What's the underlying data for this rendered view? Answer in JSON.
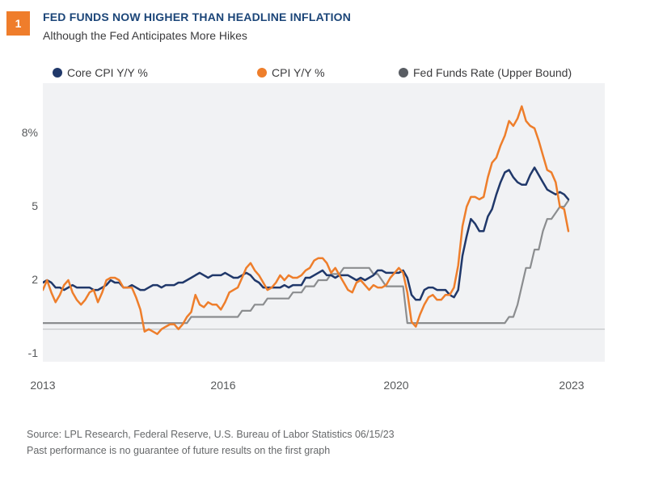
{
  "page": {
    "number_badge": "1"
  },
  "header": {
    "title": "FED FUNDS NOW HIGHER THAN HEADLINE INFLATION",
    "subtitle": "Although the Fed Anticipates More Hikes"
  },
  "legend": [
    {
      "label": "Core CPI Y/Y %",
      "color": "#20386A"
    },
    {
      "label": "CPI Y/Y %",
      "color": "#EE7E2B"
    },
    {
      "label": "Fed Funds Rate (Upper Bound)",
      "color": "#595D63"
    }
  ],
  "chart_data": {
    "type": "line",
    "title": "Fed Funds Now Higher Than Headline Inflation",
    "x_unit": "month",
    "x_start": "2013-01",
    "x_end": "2023-05",
    "x_tick_labels": [
      "2013",
      "2016",
      "2020",
      "2023"
    ],
    "y_tick_labels": [
      "8%",
      "5",
      "2",
      "-1"
    ],
    "y_tick_values": [
      8,
      5,
      2,
      -1
    ],
    "ylim": [
      -1,
      10
    ],
    "grid": "zero-line-only",
    "legend_position": "top",
    "plot_bg_color": "#F1F2F4",
    "zero_line_color": "#BFC1C3",
    "series": [
      {
        "name": "Fed Funds Rate (Upper Bound)",
        "color": "#8B8D8F",
        "stroke_width": 2.2,
        "values": [
          0.25,
          0.25,
          0.25,
          0.25,
          0.25,
          0.25,
          0.25,
          0.25,
          0.25,
          0.25,
          0.25,
          0.25,
          0.25,
          0.25,
          0.25,
          0.25,
          0.25,
          0.25,
          0.25,
          0.25,
          0.25,
          0.25,
          0.25,
          0.25,
          0.25,
          0.25,
          0.25,
          0.25,
          0.25,
          0.25,
          0.25,
          0.25,
          0.25,
          0.25,
          0.25,
          0.5,
          0.5,
          0.5,
          0.5,
          0.5,
          0.5,
          0.5,
          0.5,
          0.5,
          0.5,
          0.5,
          0.5,
          0.75,
          0.75,
          0.75,
          1.0,
          1.0,
          1.0,
          1.25,
          1.25,
          1.25,
          1.25,
          1.25,
          1.25,
          1.5,
          1.5,
          1.5,
          1.75,
          1.75,
          1.75,
          2.0,
          2.0,
          2.0,
          2.25,
          2.25,
          2.25,
          2.5,
          2.5,
          2.5,
          2.5,
          2.5,
          2.5,
          2.5,
          2.25,
          2.25,
          2.0,
          1.75,
          1.75,
          1.75,
          1.75,
          1.75,
          0.25,
          0.25,
          0.25,
          0.25,
          0.25,
          0.25,
          0.25,
          0.25,
          0.25,
          0.25,
          0.25,
          0.25,
          0.25,
          0.25,
          0.25,
          0.25,
          0.25,
          0.25,
          0.25,
          0.25,
          0.25,
          0.25,
          0.25,
          0.25,
          0.5,
          0.5,
          1.0,
          1.75,
          2.5,
          2.5,
          3.25,
          3.25,
          4.0,
          4.5,
          4.5,
          4.75,
          5.0,
          5.0,
          5.25
        ]
      },
      {
        "name": "Core CPI Y/Y %",
        "color": "#20386A",
        "stroke_width": 2.5,
        "values": [
          1.9,
          2.0,
          1.9,
          1.7,
          1.7,
          1.6,
          1.7,
          1.8,
          1.7,
          1.7,
          1.7,
          1.7,
          1.6,
          1.6,
          1.7,
          1.8,
          2.0,
          1.9,
          1.9,
          1.7,
          1.7,
          1.8,
          1.7,
          1.6,
          1.6,
          1.7,
          1.8,
          1.8,
          1.7,
          1.8,
          1.8,
          1.8,
          1.9,
          1.9,
          2.0,
          2.1,
          2.2,
          2.3,
          2.2,
          2.1,
          2.2,
          2.2,
          2.2,
          2.3,
          2.2,
          2.1,
          2.1,
          2.2,
          2.3,
          2.2,
          2.0,
          1.9,
          1.7,
          1.7,
          1.7,
          1.7,
          1.7,
          1.8,
          1.7,
          1.8,
          1.8,
          1.8,
          2.1,
          2.1,
          2.2,
          2.3,
          2.4,
          2.2,
          2.2,
          2.1,
          2.2,
          2.2,
          2.2,
          2.1,
          2.0,
          2.1,
          2.0,
          2.1,
          2.2,
          2.4,
          2.4,
          2.3,
          2.3,
          2.3,
          2.3,
          2.4,
          2.1,
          1.4,
          1.2,
          1.2,
          1.6,
          1.7,
          1.7,
          1.6,
          1.6,
          1.6,
          1.4,
          1.3,
          1.6,
          3.0,
          3.8,
          4.5,
          4.3,
          4.0,
          4.0,
          4.6,
          4.9,
          5.5,
          6.0,
          6.4,
          6.5,
          6.2,
          6.0,
          5.9,
          5.9,
          6.3,
          6.6,
          6.3,
          6.0,
          5.7,
          5.6,
          5.5,
          5.6,
          5.5,
          5.3
        ]
      },
      {
        "name": "CPI Y/Y %",
        "color": "#EE7E2B",
        "stroke_width": 2.5,
        "values": [
          1.6,
          2.0,
          1.5,
          1.1,
          1.4,
          1.8,
          2.0,
          1.5,
          1.2,
          1.0,
          1.2,
          1.5,
          1.6,
          1.1,
          1.5,
          2.0,
          2.1,
          2.1,
          2.0,
          1.7,
          1.7,
          1.7,
          1.3,
          0.8,
          -0.1,
          0.0,
          -0.1,
          -0.2,
          0.0,
          0.1,
          0.2,
          0.2,
          0.0,
          0.2,
          0.5,
          0.7,
          1.4,
          1.0,
          0.9,
          1.1,
          1.0,
          1.0,
          0.8,
          1.1,
          1.5,
          1.6,
          1.7,
          2.1,
          2.5,
          2.7,
          2.4,
          2.2,
          1.9,
          1.6,
          1.7,
          1.9,
          2.2,
          2.0,
          2.2,
          2.1,
          2.1,
          2.2,
          2.4,
          2.5,
          2.8,
          2.9,
          2.9,
          2.7,
          2.3,
          2.5,
          2.2,
          1.9,
          1.6,
          1.5,
          1.9,
          2.0,
          1.8,
          1.6,
          1.8,
          1.7,
          1.7,
          1.8,
          2.1,
          2.3,
          2.5,
          2.3,
          1.5,
          0.3,
          0.1,
          0.6,
          1.0,
          1.3,
          1.4,
          1.2,
          1.2,
          1.4,
          1.4,
          1.7,
          2.6,
          4.2,
          5.0,
          5.4,
          5.4,
          5.3,
          5.4,
          6.2,
          6.8,
          7.0,
          7.5,
          7.9,
          8.5,
          8.3,
          8.6,
          9.1,
          8.5,
          8.3,
          8.2,
          7.7,
          7.1,
          6.5,
          6.4,
          6.0,
          5.0,
          4.9,
          4.0
        ]
      }
    ]
  },
  "footer": {
    "source_line1": "Source: LPL Research, Federal Reserve, U.S. Bureau of Labor Statistics  06/15/23",
    "source_line2": "Past performance is no guarantee of future results on the first graph"
  }
}
